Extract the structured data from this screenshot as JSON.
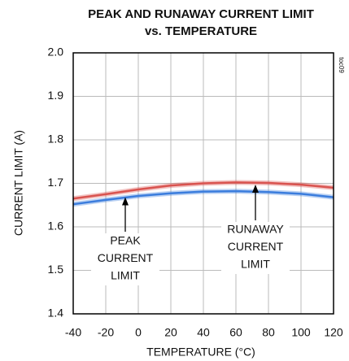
{
  "chart_data": {
    "type": "line",
    "title": [
      "PEAK AND RUNAWAY CURRENT LIMIT",
      "vs. TEMPERATURE"
    ],
    "xlabel": "TEMPERATURE (°C)",
    "ylabel": "CURRENT LIMIT (A)",
    "x": [
      -40,
      -20,
      0,
      20,
      40,
      60,
      80,
      100,
      120
    ],
    "series": [
      {
        "name": "RUNAWAY CURRENT LIMIT",
        "color": "#d9534f",
        "values": [
          1.665,
          1.675,
          1.686,
          1.695,
          1.7,
          1.702,
          1.701,
          1.697,
          1.69
        ]
      },
      {
        "name": "PEAK CURRENT LIMIT",
        "color": "#3b7ddd",
        "values": [
          1.652,
          1.662,
          1.671,
          1.677,
          1.681,
          1.682,
          1.68,
          1.676,
          1.668
        ]
      }
    ],
    "annotations": [
      {
        "lines": [
          "PEAK",
          "CURRENT",
          "LIMIT"
        ],
        "x": -8,
        "y": 1.672
      },
      {
        "lines": [
          "RUNAWAY",
          "CURRENT",
          "LIMIT"
        ],
        "x": 72,
        "y": 1.701
      },
      {
        "lines": [
          "toc09"
        ]
      }
    ],
    "xlim": [
      -40,
      125
    ],
    "xticks": [
      -40,
      -20,
      0,
      20,
      40,
      60,
      80,
      100,
      120
    ],
    "ylim": [
      1.4,
      2.0
    ],
    "yticks": [
      1.4,
      1.5,
      1.6,
      1.7,
      1.8,
      1.9,
      {
        "value": 2.0,
        "label": "2.0"
      }
    ],
    "grid": true
  }
}
